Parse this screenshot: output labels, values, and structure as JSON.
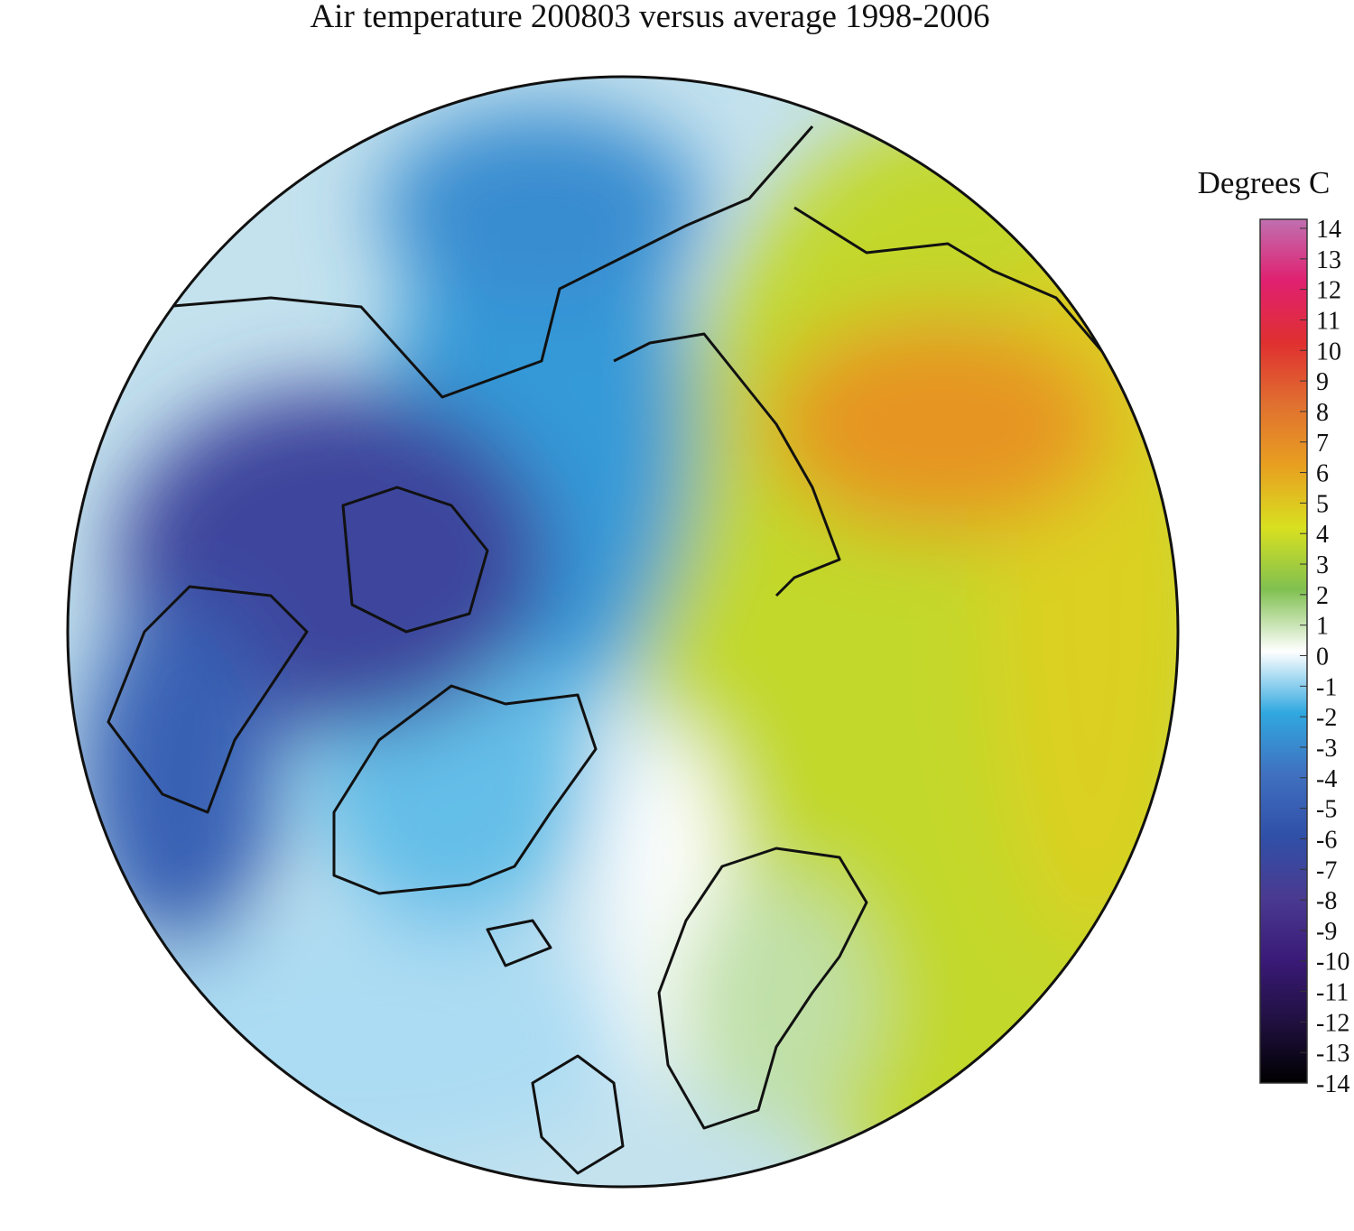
{
  "title": "Air temperature 200803 versus average 1998-2006",
  "colorbar": {
    "label": "Degrees C",
    "lim": [
      -14,
      14
    ],
    "ticks": [
      14,
      13,
      12,
      11,
      10,
      9,
      8,
      7,
      6,
      5,
      4,
      3,
      2,
      1,
      0,
      -1,
      -2,
      -3,
      -4,
      -5,
      -6,
      -7,
      -8,
      -9,
      -10,
      -11,
      -12,
      -13,
      -14
    ],
    "colors": [
      "#000000",
      "#201040",
      "#3a1a78",
      "#4a3a90",
      "#3050a8",
      "#4070c0",
      "#30a8e0",
      "#ffffff",
      "#80c050",
      "#d8e020",
      "#e8a020",
      "#e07030",
      "#e03030",
      "#e02070",
      "#c070b0"
    ]
  },
  "field": [
    -0.8,
    3.5,
    4.5,
    6.5,
    -2.5,
    -3,
    -1.5,
    -7,
    -5,
    0,
    1
  ]
}
